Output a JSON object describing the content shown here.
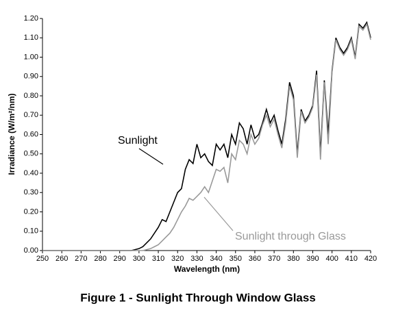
{
  "chart_data": {
    "type": "line",
    "caption": "Figure 1 - Sunlight Through Window Glass",
    "xlabel": "Wavelength (nm)",
    "ylabel": "Irradiance (W/m²/nm)",
    "annotations": [
      "Sunlight",
      "Sunlight through Glass"
    ],
    "x": [
      250,
      260,
      270,
      280,
      290,
      292,
      294,
      296,
      298,
      300,
      302,
      304,
      306,
      308,
      310,
      312,
      314,
      316,
      318,
      320,
      322,
      324,
      326,
      328,
      330,
      332,
      334,
      336,
      338,
      340,
      342,
      344,
      346,
      348,
      350,
      352,
      354,
      356,
      358,
      360,
      362,
      364,
      366,
      368,
      370,
      372,
      374,
      376,
      378,
      380,
      382,
      384,
      386,
      388,
      390,
      392,
      394,
      396,
      398,
      400,
      402,
      404,
      406,
      408,
      410,
      412,
      414,
      416,
      418,
      420
    ],
    "series": [
      {
        "name": "Sunlight",
        "color": "#000000",
        "values": [
          0,
          0,
          0,
          0,
          0,
          0,
          0,
          0,
          0.005,
          0.01,
          0.02,
          0.04,
          0.06,
          0.09,
          0.12,
          0.16,
          0.15,
          0.2,
          0.25,
          0.3,
          0.32,
          0.42,
          0.47,
          0.45,
          0.55,
          0.48,
          0.5,
          0.46,
          0.44,
          0.55,
          0.52,
          0.55,
          0.48,
          0.6,
          0.55,
          0.66,
          0.63,
          0.55,
          0.65,
          0.58,
          0.6,
          0.66,
          0.73,
          0.66,
          0.7,
          0.62,
          0.55,
          0.68,
          0.87,
          0.8,
          0.5,
          0.73,
          0.67,
          0.7,
          0.75,
          0.93,
          0.5,
          0.88,
          0.6,
          0.93,
          1.1,
          1.05,
          1.02,
          1.05,
          1.1,
          1.0,
          1.17,
          1.15,
          1.18,
          1.1
        ]
      },
      {
        "name": "Sunlight through Glass",
        "color": "#999999",
        "values": [
          0,
          0,
          0,
          0,
          0,
          0,
          0,
          0,
          0,
          0,
          0,
          0.005,
          0.01,
          0.02,
          0.03,
          0.05,
          0.07,
          0.09,
          0.12,
          0.16,
          0.2,
          0.23,
          0.27,
          0.26,
          0.28,
          0.3,
          0.33,
          0.3,
          0.36,
          0.42,
          0.41,
          0.43,
          0.35,
          0.5,
          0.47,
          0.57,
          0.55,
          0.5,
          0.6,
          0.55,
          0.58,
          0.65,
          0.7,
          0.64,
          0.68,
          0.6,
          0.53,
          0.66,
          0.85,
          0.78,
          0.48,
          0.72,
          0.66,
          0.69,
          0.74,
          0.91,
          0.47,
          0.87,
          0.55,
          0.92,
          1.09,
          1.04,
          1.01,
          1.04,
          1.09,
          0.99,
          1.16,
          1.14,
          1.17,
          1.09
        ]
      }
    ],
    "xlim": [
      250,
      420
    ],
    "xticks": [
      250,
      260,
      270,
      280,
      290,
      300,
      310,
      320,
      330,
      340,
      350,
      360,
      370,
      380,
      390,
      400,
      410,
      420
    ],
    "ylim": [
      0,
      1.2
    ],
    "yticks": [
      {
        "value": 0,
        "label": "0.00"
      },
      {
        "value": 0.1,
        "label": "0.10"
      },
      {
        "value": 0.2,
        "label": "0.20"
      },
      {
        "value": 0.3,
        "label": "0.30"
      },
      {
        "value": 0.4,
        "label": "0.40"
      },
      {
        "value": 0.5,
        "label": "0.50"
      },
      {
        "value": 0.6,
        "label": "0.60"
      },
      {
        "value": 0.7,
        "label": "0.70"
      },
      {
        "value": 0.8,
        "label": "0.80"
      },
      {
        "value": 0.9,
        "label": "0.90"
      },
      {
        "value": 1.0,
        "label": "1.00"
      },
      {
        "value": 1.1,
        "label": "1.10"
      },
      {
        "value": 1.2,
        "label": "1.20"
      }
    ],
    "grid": false
  }
}
